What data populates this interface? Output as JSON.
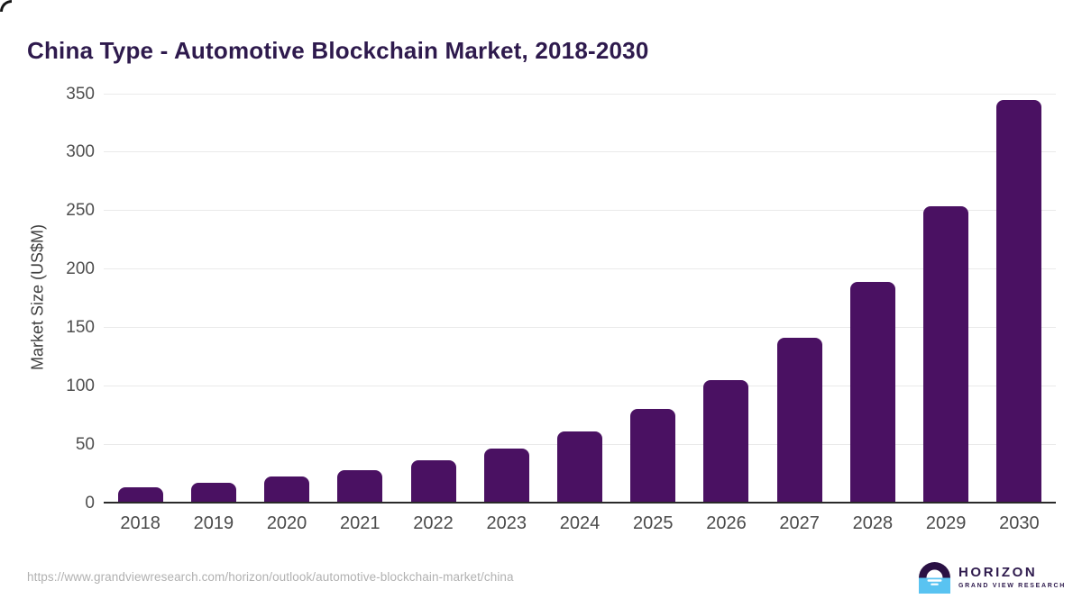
{
  "page": {
    "title": "China Type - Automotive Blockchain Market, 2018-2030",
    "source_url": "https://www.grandviewresearch.com/horizon/outlook/automotive-blockchain-market/china"
  },
  "logo": {
    "name": "HORIZON",
    "subtitle": "GRAND VIEW RESEARCH"
  },
  "colors": {
    "bar": "#4a1162",
    "title": "#2e1a4d",
    "gridline": "#eaeaea",
    "baseline": "#2a2a2a",
    "axis_label": "#4f4f4f",
    "url_text": "#b1b1b1",
    "logo_dark_half": "#2a1144",
    "logo_blue_half": "#59c3f1"
  },
  "chart_data": {
    "type": "bar",
    "title": "China Type - Automotive Blockchain Market, 2018-2030",
    "categories": [
      "2018",
      "2019",
      "2020",
      "2021",
      "2022",
      "2023",
      "2024",
      "2025",
      "2026",
      "2027",
      "2028",
      "2029",
      "2030"
    ],
    "values": [
      13,
      17,
      22,
      28,
      36,
      46,
      61,
      80,
      105,
      141,
      189,
      254,
      345
    ],
    "xlabel": "",
    "ylabel": "Market Size (US$M)",
    "ylim": [
      0,
      350
    ],
    "ytick_step": 50,
    "yticks": [
      0,
      50,
      100,
      150,
      200,
      250,
      300,
      350
    ],
    "grid": true,
    "legend_position": "none",
    "bar_color": "#4a1162"
  }
}
